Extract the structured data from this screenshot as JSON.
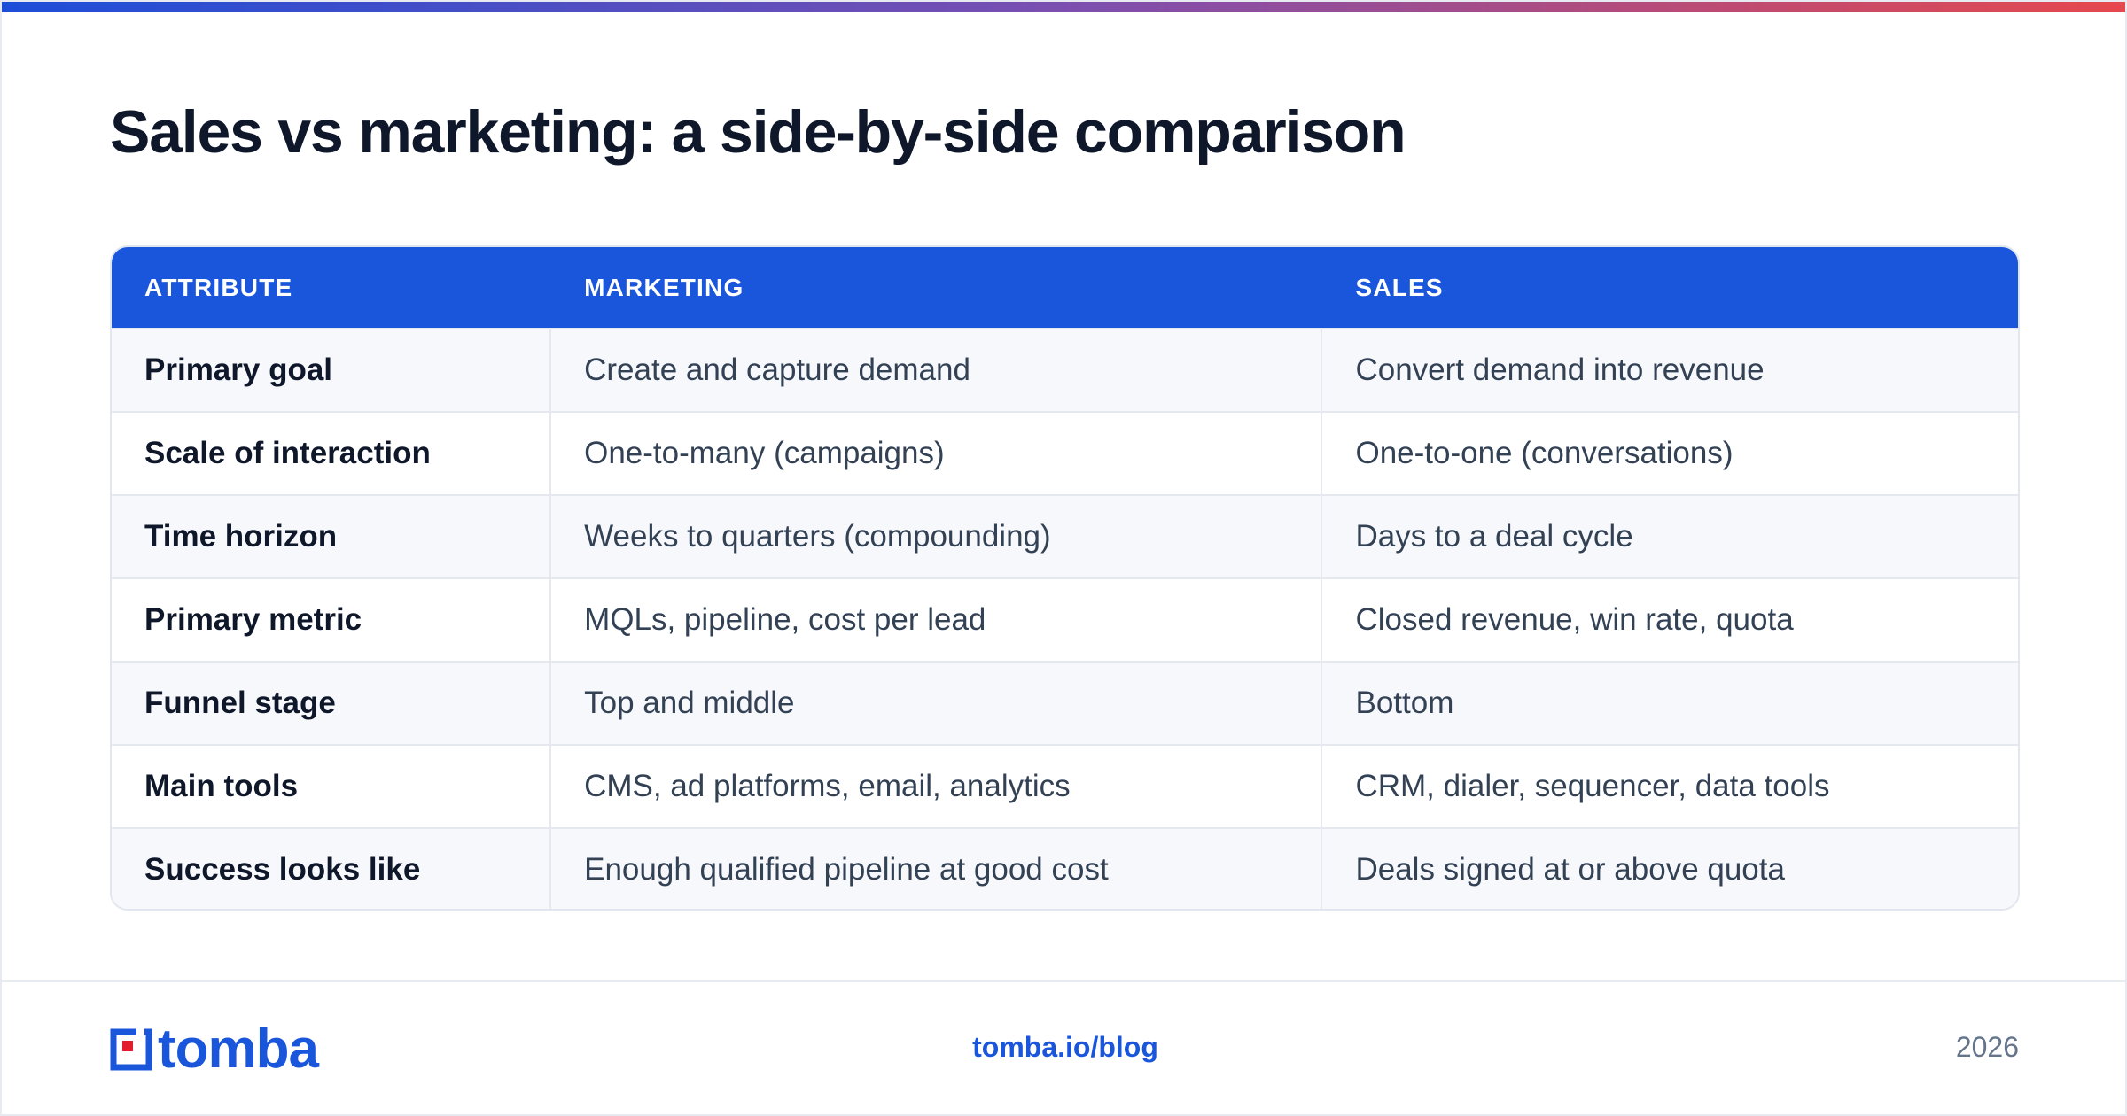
{
  "title": "Sales vs marketing: a side-by-side comparison",
  "colors": {
    "accent": "#1a56db",
    "heading": "#0f172a",
    "body_text": "#334155",
    "muted": "#64748b",
    "top_bar_start": "#1d4ed8",
    "top_bar_end": "#e5484d",
    "logo_square": "#e11d2e"
  },
  "table": {
    "headers": [
      "ATTRIBUTE",
      "MARKETING",
      "SALES"
    ],
    "rows": [
      [
        "Primary goal",
        "Create and capture demand",
        "Convert demand into revenue"
      ],
      [
        "Scale of interaction",
        "One-to-many (campaigns)",
        "One-to-one (conversations)"
      ],
      [
        "Time horizon",
        "Weeks to quarters (compounding)",
        "Days to a deal cycle"
      ],
      [
        "Primary metric",
        "MQLs, pipeline, cost per lead",
        "Closed revenue, win rate, quota"
      ],
      [
        "Funnel stage",
        "Top and middle",
        "Bottom"
      ],
      [
        "Main tools",
        "CMS, ad platforms, email, analytics",
        "CRM, dialer, sequencer, data tools"
      ],
      [
        "Success looks like",
        "Enough qualified pipeline at good cost",
        "Deals signed at or above quota"
      ]
    ]
  },
  "footer": {
    "logo_text": "tomba",
    "logo_icon": "tomba-logo-icon",
    "link": "tomba.io/blog",
    "year": "2026"
  }
}
